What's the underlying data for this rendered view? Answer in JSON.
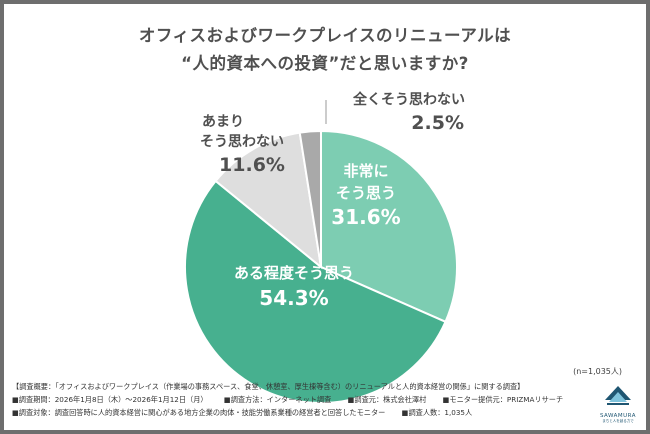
{
  "title": {
    "line1": "オフィスおよびワークプレイスのリニューアルは",
    "line2": "“人的資本への投資”だと思いますか?"
  },
  "chart_data": {
    "type": "pie",
    "slices": [
      {
        "label": "非常に そう思う",
        "label_lines": [
          "非常に",
          "そう思う"
        ],
        "value": 31.6,
        "display": "31.6%",
        "color": "#7dcdb2"
      },
      {
        "label": "ある程度そう思う",
        "label_lines": [
          "ある程度そう思う"
        ],
        "value": 54.3,
        "display": "54.3%",
        "color": "#47b08f"
      },
      {
        "label": "あまり そう思わない",
        "label_lines": [
          "あまり",
          "そう思わない"
        ],
        "value": 11.6,
        "display": "11.6%",
        "color": "#dedede"
      },
      {
        "label": "全くそう思わない",
        "label_lines": [
          "全くそう思わない"
        ],
        "value": 2.5,
        "display": "2.5%",
        "color": "#a9a9a9"
      }
    ],
    "start": "12 o'clock",
    "direction": "clockwise"
  },
  "sample_note": "(n=1,035人)",
  "footer": {
    "row1": "【調査概要：「オフィスおよびワークプレイス（作業場の事務スペース、食堂、休憩室、厚生棟等含む）のリニューアルと人的資本経営の関係」に関する調査】",
    "row2": [
      "■調査期間：2026年1月8日（木）〜2026年1月12日（月）",
      "■調査方法：インターネット調査",
      "■調査元：株式会社澤村",
      "■モニター提供元：PRIZMAリサーチ"
    ],
    "row3": [
      "■調査対象：調査回答時に人的資本経営に関心がある地方企業の肉体・技能労働系業種の経営者と回答したモニター",
      "■調査人数：1,035人"
    ]
  },
  "logo": {
    "name": "SAWAMURA",
    "tagline": "まちと人を創る力で",
    "colors": {
      "dark": "#1f5672",
      "light": "#7ec3dc"
    }
  },
  "colors": {
    "background_frame": "#6e6e6e",
    "text": "#505050"
  }
}
